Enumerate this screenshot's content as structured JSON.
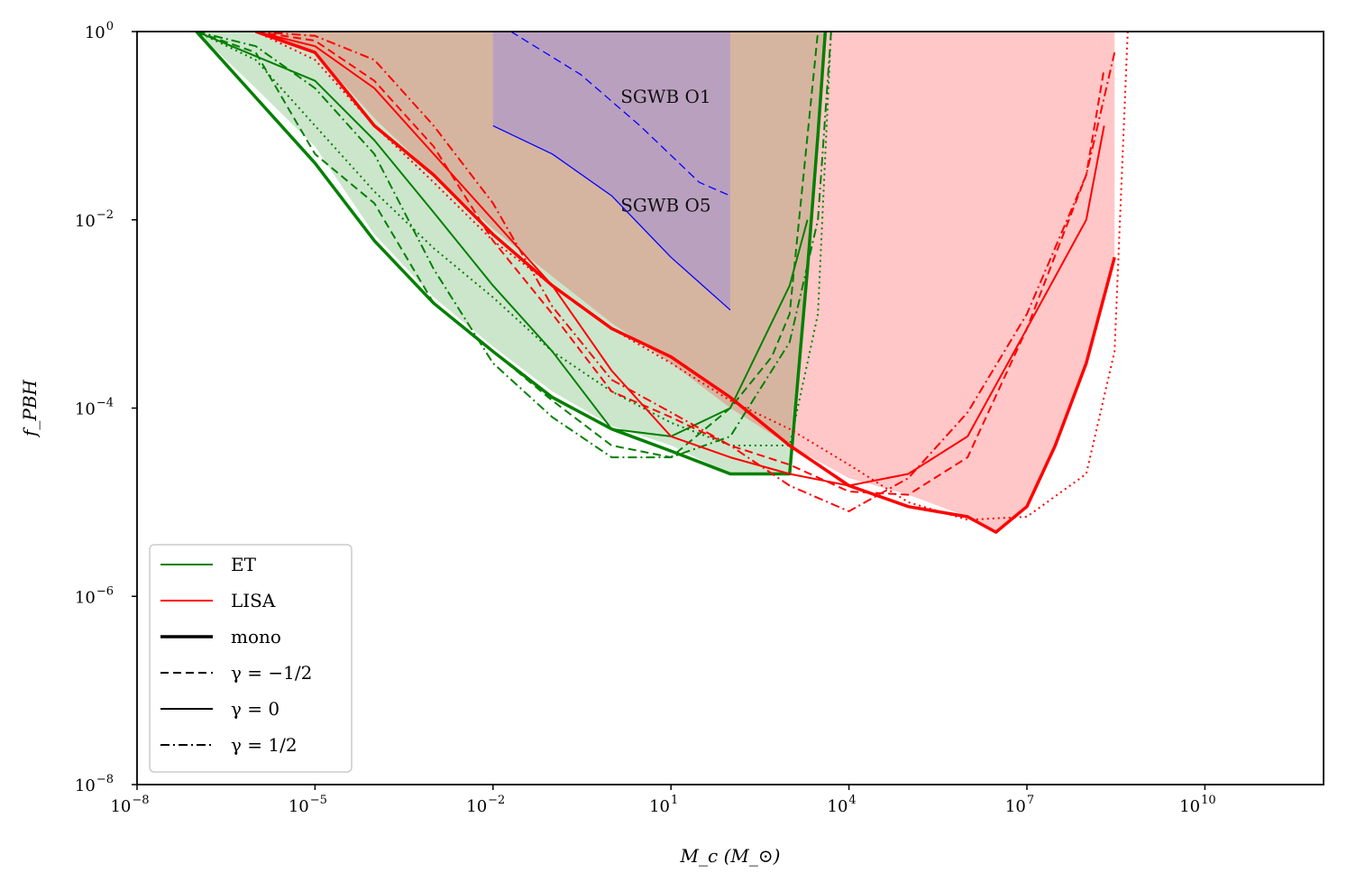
{
  "chart_data": {
    "type": "line",
    "xlabel": "M_c (M_⊙)",
    "ylabel": "f_PBH",
    "xscale": "log",
    "yscale": "log",
    "xlim": [
      1e-08,
      1000000000000.0
    ],
    "ylim": [
      1e-08,
      1
    ],
    "x_ticks": [
      {
        "base": "10",
        "exp": "−8",
        "value": 1e-08
      },
      {
        "base": "10",
        "exp": "−5",
        "value": 1e-05
      },
      {
        "base": "10",
        "exp": "−2",
        "value": 0.01
      },
      {
        "base": "10",
        "exp": "1",
        "value": 10.0
      },
      {
        "base": "10",
        "exp": "4",
        "value": 10000.0
      },
      {
        "base": "10",
        "exp": "7",
        "value": 10000000.0
      },
      {
        "base": "10",
        "exp": "10",
        "value": 10000000000.0
      }
    ],
    "y_ticks": [
      {
        "base": "10",
        "exp": "0",
        "value": 1
      },
      {
        "base": "10",
        "exp": "−2",
        "value": 0.01
      },
      {
        "base": "10",
        "exp": "−4",
        "value": 0.0001
      },
      {
        "base": "10",
        "exp": "−6",
        "value": 1e-06
      },
      {
        "base": "10",
        "exp": "−8",
        "value": 1e-08
      }
    ],
    "legend": {
      "position": "lower-left",
      "entries": [
        {
          "label": "ET",
          "color": "#008000",
          "dash": "solid",
          "width": 2
        },
        {
          "label": "LISA",
          "color": "#ff0000",
          "dash": "solid",
          "width": 2
        },
        {
          "label": "mono",
          "color": "#000000",
          "dash": "solid",
          "width": 3.5
        },
        {
          "label": "γ = −1/2",
          "color": "#000000",
          "dash": "dashed",
          "width": 2
        },
        {
          "label": "γ = 0",
          "color": "#000000",
          "dash": "solid",
          "width": 2
        },
        {
          "label": "γ = 1/2",
          "color": "#000000",
          "dash": "dashdot",
          "width": 2
        }
      ]
    },
    "annotations": [
      {
        "text": "SGWB O1",
        "x": 2.0,
        "y": 0.2
      },
      {
        "text": "SGWB O5",
        "x": 2.0,
        "y": 0.014
      }
    ],
    "regions": [
      {
        "name": "LISA-excluded",
        "fill": "#ffc7c7",
        "points": [
          [
            1e-06,
            1
          ],
          [
            1e-05,
            0.6
          ],
          [
            0.0001,
            0.12
          ],
          [
            0.001,
            0.03
          ],
          [
            0.01,
            0.008
          ],
          [
            0.1,
            0.0025
          ],
          [
            1,
            0.0008
          ],
          [
            10,
            0.0003
          ],
          [
            100,
            0.0001
          ],
          [
            1000,
            4e-05
          ],
          [
            10000,
            1.8e-05
          ],
          [
            100000,
            1.2e-05
          ],
          [
            1000000,
            7e-06
          ],
          [
            3000000,
            4.8e-06
          ],
          [
            10000000,
            9e-06
          ],
          [
            30000000,
            4e-05
          ],
          [
            100000000,
            0.0003
          ],
          [
            300000000,
            0.004
          ],
          [
            300000000,
            1
          ]
        ]
      },
      {
        "name": "ET-excluded",
        "fill": "#cce6cc",
        "points": [
          [
            1e-07,
            1
          ],
          [
            1e-06,
            0.25
          ],
          [
            1e-05,
            0.06
          ],
          [
            0.0001,
            0.007
          ],
          [
            0.001,
            0.0015
          ],
          [
            0.01,
            0.00045
          ],
          [
            0.1,
            0.00015
          ],
          [
            1,
            6.5e-05
          ],
          [
            10,
            4e-05
          ],
          [
            100,
            2e-05
          ],
          [
            1000,
            2e-05
          ],
          [
            2000,
            0.003
          ],
          [
            3000,
            0.08
          ],
          [
            4000,
            1
          ]
        ]
      },
      {
        "name": "overlap",
        "fill": "#d6b5a0",
        "points": [
          [
            1e-06,
            1
          ],
          [
            1e-05,
            0.6
          ],
          [
            0.0001,
            0.12
          ],
          [
            0.001,
            0.03
          ],
          [
            0.01,
            0.008
          ],
          [
            0.1,
            0.0025
          ],
          [
            1,
            0.0008
          ],
          [
            10,
            0.0003
          ],
          [
            100,
            0.0001
          ],
          [
            1000,
            4e-05
          ],
          [
            2000,
            0.003
          ],
          [
            4000,
            1
          ]
        ]
      },
      {
        "name": "SGWB",
        "fill": "#b59cc4",
        "points": [
          [
            0.01,
            1
          ],
          [
            100,
            1
          ],
          [
            100,
            0.0011
          ],
          [
            10,
            0.004
          ],
          [
            1,
            0.018
          ],
          [
            0.1,
            0.05
          ],
          [
            0.01,
            0.1
          ]
        ]
      }
    ],
    "series": [
      {
        "color": "#0000ff",
        "dash": "solid",
        "width": 1.3,
        "points": [
          [
            0.01,
            0.1
          ],
          [
            0.1,
            0.05
          ],
          [
            1,
            0.018
          ],
          [
            10,
            0.004
          ],
          [
            100,
            0.0011
          ]
        ]
      },
      {
        "color": "#0000ff",
        "dash": "dashed",
        "width": 1.3,
        "points": [
          [
            0.02,
            1
          ],
          [
            0.3,
            0.35
          ],
          [
            3,
            0.1
          ],
          [
            30,
            0.025
          ],
          [
            100,
            0.018
          ]
        ]
      },
      {
        "name": "ET mono",
        "color": "#008000",
        "dash": "solid",
        "width": 3.5,
        "points": [
          [
            1e-07,
            1
          ],
          [
            1e-06,
            0.2
          ],
          [
            1e-05,
            0.04
          ],
          [
            0.0001,
            0.006
          ],
          [
            0.001,
            0.0013
          ],
          [
            0.01,
            0.0004
          ],
          [
            0.1,
            0.00013
          ],
          [
            1,
            6e-05
          ],
          [
            10,
            3.5e-05
          ],
          [
            100,
            2e-05
          ],
          [
            1000,
            2e-05
          ],
          [
            2000,
            0.003
          ],
          [
            3000,
            0.08
          ],
          [
            4000,
            1
          ]
        ]
      },
      {
        "name": "ET γ=0",
        "color": "#008000",
        "dash": "solid",
        "width": 2,
        "points": [
          [
            1e-07,
            1
          ],
          [
            1e-05,
            0.3
          ],
          [
            0.0001,
            0.07
          ],
          [
            0.001,
            0.012
          ],
          [
            0.01,
            0.002
          ],
          [
            0.1,
            0.0004
          ],
          [
            1,
            6e-05
          ],
          [
            10,
            5e-05
          ],
          [
            100,
            0.0001
          ],
          [
            1000,
            0.002
          ],
          [
            2000,
            0.01
          ]
        ]
      },
      {
        "name": "ET γ=−1/2",
        "color": "#008000",
        "dash": "dashed",
        "width": 2,
        "points": [
          [
            1e-07,
            1
          ],
          [
            1e-06,
            0.6
          ],
          [
            1e-05,
            0.05
          ],
          [
            0.0001,
            0.015
          ],
          [
            0.001,
            0.0013
          ],
          [
            0.01,
            0.0004
          ],
          [
            0.1,
            0.00012
          ],
          [
            1,
            4e-05
          ],
          [
            10,
            3e-05
          ],
          [
            100,
            0.0001
          ],
          [
            500,
            0.00035
          ],
          [
            1000,
            0.001
          ],
          [
            3000,
            1
          ]
        ]
      },
      {
        "name": "ET γ=1/2",
        "color": "#008000",
        "dash": "dashdot",
        "width": 2,
        "points": [
          [
            1e-07,
            1
          ],
          [
            1e-06,
            0.7
          ],
          [
            1e-05,
            0.25
          ],
          [
            0.0001,
            0.05
          ],
          [
            0.001,
            0.003
          ],
          [
            0.01,
            0.0003
          ],
          [
            0.1,
            8e-05
          ],
          [
            1,
            3e-05
          ],
          [
            10,
            3e-05
          ],
          [
            100,
            5e-05
          ],
          [
            1000,
            0.0005
          ],
          [
            3000,
            0.01
          ],
          [
            5000,
            1
          ]
        ]
      },
      {
        "name": "ET dotted",
        "color": "#008000",
        "dash": "dotted",
        "width": 2,
        "points": [
          [
            1e-07,
            1
          ],
          [
            1e-06,
            0.5
          ],
          [
            1e-05,
            0.1
          ],
          [
            0.0001,
            0.02
          ],
          [
            0.001,
            0.005
          ],
          [
            0.01,
            0.0015
          ],
          [
            0.1,
            0.0004
          ],
          [
            1,
            0.00015
          ],
          [
            10,
            7e-05
          ],
          [
            100,
            4e-05
          ],
          [
            1000,
            4e-05
          ],
          [
            3000,
            0.001
          ],
          [
            4000,
            0.05
          ],
          [
            5000,
            1
          ]
        ]
      },
      {
        "name": "LISA mono",
        "color": "#ff0000",
        "dash": "solid",
        "width": 3.5,
        "points": [
          [
            1e-06,
            1
          ],
          [
            1e-05,
            0.6
          ],
          [
            0.0001,
            0.1
          ],
          [
            0.001,
            0.03
          ],
          [
            0.01,
            0.007
          ],
          [
            0.1,
            0.002
          ],
          [
            1,
            0.0007
          ],
          [
            10,
            0.00035
          ],
          [
            100,
            0.00013
          ],
          [
            1000,
            4e-05
          ],
          [
            10000,
            1.5e-05
          ],
          [
            100000,
            9e-06
          ],
          [
            1000000,
            7e-06
          ],
          [
            3000000,
            4.8e-06
          ],
          [
            10000000,
            9e-06
          ],
          [
            30000000,
            4e-05
          ],
          [
            100000000,
            0.0003
          ],
          [
            300000000,
            0.004
          ]
        ]
      },
      {
        "name": "LISA γ=0",
        "color": "#ff0000",
        "dash": "solid",
        "width": 2,
        "points": [
          [
            1e-06,
            1
          ],
          [
            1e-05,
            0.7
          ],
          [
            0.0001,
            0.25
          ],
          [
            0.001,
            0.05
          ],
          [
            0.01,
            0.01
          ],
          [
            0.1,
            0.002
          ],
          [
            1,
            0.00025
          ],
          [
            10,
            5e-05
          ],
          [
            100,
            3e-05
          ],
          [
            1000,
            2e-05
          ],
          [
            10000,
            1.5e-05
          ],
          [
            100000,
            2e-05
          ],
          [
            1000000,
            5e-05
          ],
          [
            10000000,
            0.0007
          ],
          [
            100000000,
            0.01
          ],
          [
            200000000,
            0.1
          ]
        ]
      },
      {
        "name": "LISA γ=−1/2",
        "color": "#ff0000",
        "dash": "dashed",
        "width": 2,
        "points": [
          [
            1e-06,
            1
          ],
          [
            1e-05,
            0.8
          ],
          [
            0.0001,
            0.3
          ],
          [
            0.001,
            0.06
          ],
          [
            0.01,
            0.006
          ],
          [
            0.1,
            0.001
          ],
          [
            1,
            0.00015
          ],
          [
            10,
            8e-05
          ],
          [
            100,
            4e-05
          ],
          [
            1000,
            2.5e-05
          ],
          [
            10000,
            1.3e-05
          ],
          [
            100000,
            1.2e-05
          ],
          [
            1000000,
            3e-05
          ],
          [
            10000000,
            0.0007
          ],
          [
            100000000,
            0.03
          ],
          [
            200000000,
            0.4
          ]
        ]
      },
      {
        "name": "LISA γ=1/2",
        "color": "#ff0000",
        "dash": "dashdot",
        "width": 2,
        "points": [
          [
            1e-06,
            1
          ],
          [
            1e-05,
            0.9
          ],
          [
            0.0001,
            0.5
          ],
          [
            0.001,
            0.1
          ],
          [
            0.01,
            0.015
          ],
          [
            0.1,
            0.0012
          ],
          [
            1,
            0.0002
          ],
          [
            10,
            9e-05
          ],
          [
            100,
            4e-05
          ],
          [
            1000,
            1.5e-05
          ],
          [
            10000,
            8e-06
          ],
          [
            100000,
            1.8e-05
          ],
          [
            1000000,
            9e-05
          ],
          [
            10000000,
            0.001
          ],
          [
            100000000,
            0.03
          ],
          [
            300000000,
            0.6
          ]
        ]
      },
      {
        "name": "LISA dotted",
        "color": "#ff0000",
        "dash": "dotted",
        "width": 2,
        "points": [
          [
            1e-06,
            1
          ],
          [
            1e-05,
            0.5
          ],
          [
            0.0001,
            0.1
          ],
          [
            0.001,
            0.025
          ],
          [
            0.01,
            0.006
          ],
          [
            0.1,
            0.002
          ],
          [
            1,
            0.0007
          ],
          [
            10,
            0.0003
          ],
          [
            100,
            0.00012
          ],
          [
            1000,
            6e-05
          ],
          [
            10000,
            2.5e-05
          ],
          [
            100000,
            1e-05
          ],
          [
            1000000,
            6.5e-06
          ],
          [
            10000000,
            7e-06
          ],
          [
            100000000,
            2e-05
          ],
          [
            300000000,
            0.0004
          ],
          [
            500000000,
            1
          ]
        ]
      }
    ]
  }
}
